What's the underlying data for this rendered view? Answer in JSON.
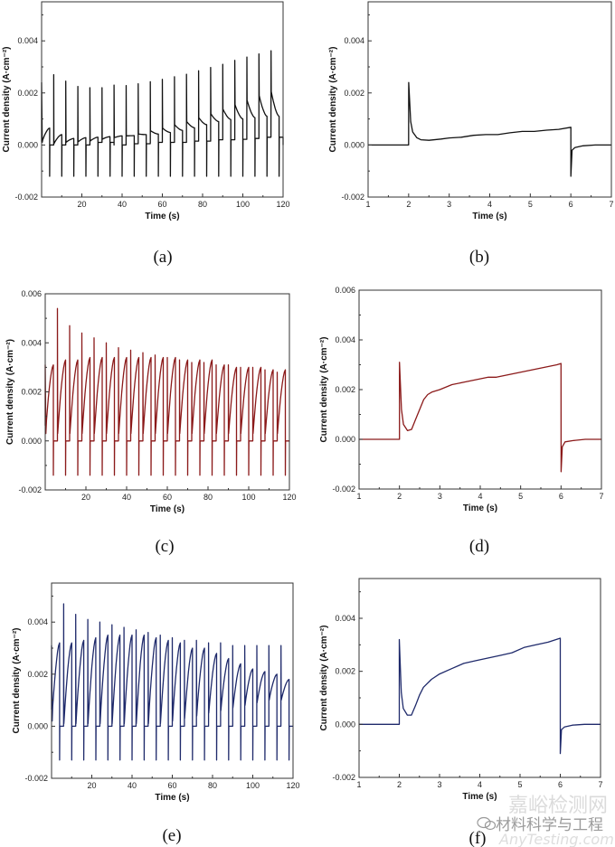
{
  "figure": {
    "watermark": {
      "site_name": "嘉峪检测网",
      "account_name": "材料科学与工程",
      "url_text": "AnyTesting.com",
      "icon": "wechat-icon"
    }
  },
  "chart_data": [
    {
      "id": "a",
      "panel_label": "(a)",
      "type": "line",
      "title": "",
      "xlabel": "Time (s)",
      "ylabel": "Current density (A·cm⁻²)",
      "xlim": [
        0,
        120
      ],
      "ylim": [
        -0.002,
        0.0055
      ],
      "xticks": [
        20,
        40,
        60,
        80,
        100,
        120
      ],
      "xtick_labels": [
        "20",
        "40",
        "60",
        "80",
        "100",
        "120"
      ],
      "yticks": [
        -0.002,
        0,
        0.002,
        0.004
      ],
      "ytick_labels": [
        "-0.002",
        "0.000",
        "0.002",
        "0.004"
      ],
      "color": "#111111",
      "grid": false,
      "waveform": "pulse_train",
      "period_s": 6,
      "on_s": 4,
      "cycles": 20,
      "on_spike": [
        0.0024,
        0.0027,
        0.00245,
        0.00225,
        0.0022,
        0.0022,
        0.0023,
        0.00228,
        0.00235,
        0.00243,
        0.00252,
        0.00262,
        0.00272,
        0.00285,
        0.00298,
        0.0031,
        0.00325,
        0.00338,
        0.0035,
        0.00362
      ],
      "on_start": [
        0.0001,
        5e-05,
        0.0001,
        0.00012,
        0.00015,
        0.00022,
        0.00028,
        0.00035,
        0.00042,
        0.00055,
        0.00065,
        0.00078,
        0.0009,
        0.00105,
        0.0012,
        0.00138,
        0.00155,
        0.00172,
        0.0019,
        0.00205
      ],
      "on_end": [
        0.00065,
        0.0004,
        0.00025,
        0.00028,
        0.0003,
        0.00032,
        0.00035,
        0.00036,
        0.0004,
        0.00042,
        0.00048,
        0.00056,
        0.00066,
        0.00078,
        0.0009,
        0.00098,
        0.001,
        0.00105,
        0.0011,
        0.0011
      ],
      "off_spike": -0.0012,
      "off_level": [
        0,
        0,
        0,
        0,
        0.0001,
        0.0001,
        0,
        5e-05,
        5e-05,
        0.0001,
        0.0001,
        0.0001,
        0.00015,
        0.00015,
        0.0002,
        0.0002,
        0.00022,
        0.00025,
        0.0003,
        0.0003
      ]
    },
    {
      "id": "b",
      "panel_label": "(b)",
      "type": "line",
      "title": "",
      "xlabel": "Time (s)",
      "ylabel": "Current density (A·cm⁻²)",
      "xlim": [
        1,
        7
      ],
      "ylim": [
        -0.002,
        0.0055
      ],
      "xticks": [
        1,
        2,
        3,
        4,
        5,
        6,
        7
      ],
      "xtick_labels": [
        "1",
        "2",
        "3",
        "4",
        "5",
        "6",
        "7"
      ],
      "yticks": [
        -0.002,
        0,
        0.002,
        0.004
      ],
      "ytick_labels": [
        "-0.002",
        "0.000",
        "0.002",
        "0.004"
      ],
      "color": "#111111",
      "grid": false,
      "x": [
        1,
        2,
        2.001,
        2.05,
        2.1,
        2.2,
        2.3,
        2.5,
        2.8,
        3.0,
        3.3,
        3.6,
        3.9,
        4.2,
        4.5,
        4.8,
        5.1,
        5.4,
        5.7,
        6.0,
        6.001,
        6.03,
        6.1,
        6.3,
        6.6,
        7
      ],
      "y": [
        0,
        0,
        0.0024,
        0.0009,
        0.0005,
        0.00028,
        0.0002,
        0.00018,
        0.00023,
        0.00027,
        0.0003,
        0.00037,
        0.0004,
        0.0004,
        0.00047,
        0.00052,
        0.00052,
        0.00057,
        0.0006,
        0.00068,
        -0.0012,
        -0.0002,
        -0.0001,
        -3e-05,
        0,
        0
      ]
    },
    {
      "id": "c",
      "panel_label": "(c)",
      "type": "line",
      "title": "",
      "xlabel": "Time (s)",
      "ylabel": "Current density (A·cm⁻²)",
      "xlim": [
        0,
        120
      ],
      "ylim": [
        -0.002,
        0.006
      ],
      "xticks": [
        20,
        40,
        60,
        80,
        100,
        120
      ],
      "xtick_labels": [
        "20",
        "40",
        "60",
        "80",
        "100",
        "120"
      ],
      "yticks": [
        -0.002,
        0,
        0.002,
        0.004,
        0.006
      ],
      "ytick_labels": [
        "-0.002",
        "0.000",
        "0.002",
        "0.004",
        "0.006"
      ],
      "color": "#8b1a1a",
      "grid": false,
      "waveform": "pulse_train",
      "period_s": 6,
      "on_s": 4,
      "cycles": 20,
      "on_spike": [
        0.0031,
        0.0054,
        0.0047,
        0.0044,
        0.0042,
        0.004,
        0.0038,
        0.0037,
        0.0036,
        0.0035,
        0.0034,
        0.0033,
        0.0032,
        0.0032,
        0.0031,
        0.0031,
        0.003,
        0.003,
        0.0029,
        0.0028
      ],
      "on_start": [
        0.0003,
        0.0003,
        0.0003,
        0.0003,
        0.0003,
        0.0003,
        0.0003,
        0.0003,
        0.0003,
        0.0003,
        0.0003,
        0.0003,
        0.0003,
        0.0003,
        0.0003,
        0.0003,
        0.0003,
        0.0003,
        0.0003,
        0.0003
      ],
      "on_end": [
        0.0031,
        0.0033,
        0.0033,
        0.0034,
        0.0034,
        0.0034,
        0.0034,
        0.0034,
        0.0034,
        0.0034,
        0.0034,
        0.0033,
        0.0033,
        0.0033,
        0.0031,
        0.003,
        0.003,
        0.003,
        0.0029,
        0.0029
      ],
      "off_spike": -0.0014,
      "off_level": [
        0,
        0,
        0,
        0,
        0,
        0,
        0,
        0,
        0,
        0,
        0,
        0,
        0,
        0,
        0,
        0,
        0,
        0,
        0,
        0
      ]
    },
    {
      "id": "d",
      "panel_label": "(d)",
      "type": "line",
      "title": "",
      "xlabel": "Time (s)",
      "ylabel": "Current density (A·cm⁻²)",
      "xlim": [
        1,
        7
      ],
      "ylim": [
        -0.002,
        0.006
      ],
      "xticks": [
        1,
        2,
        3,
        4,
        5,
        6,
        7
      ],
      "xtick_labels": [
        "1",
        "2",
        "3",
        "4",
        "5",
        "6",
        "7"
      ],
      "yticks": [
        -0.002,
        0,
        0.002,
        0.004,
        0.006
      ],
      "ytick_labels": [
        "-0.002",
        "0.000",
        "0.002",
        "0.004",
        "0.006"
      ],
      "color": "#8b1a1a",
      "grid": false,
      "x": [
        1,
        2,
        2.001,
        2.05,
        2.1,
        2.2,
        2.3,
        2.4,
        2.5,
        2.6,
        2.7,
        2.8,
        3.0,
        3.3,
        3.6,
        3.9,
        4.2,
        4.4,
        4.7,
        5.0,
        5.3,
        5.6,
        5.9,
        6.0,
        6.001,
        6.03,
        6.1,
        6.3,
        6.6,
        7
      ],
      "y": [
        0,
        0,
        0.0031,
        0.0012,
        0.0006,
        0.00035,
        0.0004,
        0.0008,
        0.0012,
        0.0016,
        0.0018,
        0.0019,
        0.002,
        0.0022,
        0.0023,
        0.0024,
        0.0025,
        0.0025,
        0.0026,
        0.0027,
        0.0028,
        0.0029,
        0.003,
        0.00305,
        -0.0013,
        -0.0003,
        -0.0001,
        -5e-05,
        0,
        0
      ]
    },
    {
      "id": "e",
      "panel_label": "(e)",
      "type": "line",
      "title": "",
      "xlabel": "Time (s)",
      "ylabel": "Current density (A·cm⁻²)",
      "xlim": [
        0,
        120
      ],
      "ylim": [
        -0.002,
        0.0055
      ],
      "xticks": [
        20,
        40,
        60,
        80,
        100,
        120
      ],
      "xtick_labels": [
        "20",
        "40",
        "60",
        "80",
        "100",
        "120"
      ],
      "yticks": [
        -0.002,
        0,
        0.002,
        0.004
      ],
      "ytick_labels": [
        "-0.002",
        "0.000",
        "0.002",
        "0.004"
      ],
      "color": "#1f2a6b",
      "grid": false,
      "waveform": "pulse_train",
      "period_s": 6,
      "on_s": 4,
      "cycles": 20,
      "on_spike": [
        0.0031,
        0.0047,
        0.0043,
        0.0041,
        0.004,
        0.0039,
        0.0038,
        0.0037,
        0.0036,
        0.0035,
        0.0034,
        0.0033,
        0.0033,
        0.0032,
        0.0032,
        0.0031,
        0.0031,
        0.0031,
        0.0031,
        0.0031
      ],
      "on_start": [
        0.0002,
        0.0001,
        0.0001,
        0.0001,
        0.0001,
        0.0001,
        0.0001,
        0.0001,
        0.0001,
        0.0001,
        0.0002,
        0.0003,
        0.0004,
        0.0005,
        0.0006,
        0.0007,
        0.0008,
        0.0009,
        0.001,
        0.001
      ],
      "on_end": [
        0.0032,
        0.0032,
        0.0033,
        0.0034,
        0.0035,
        0.0035,
        0.0035,
        0.0035,
        0.0034,
        0.0033,
        0.0032,
        0.003,
        0.003,
        0.0028,
        0.0026,
        0.0024,
        0.0022,
        0.0021,
        0.002,
        0.0018
      ],
      "off_spike": -0.0013,
      "off_level": [
        0,
        0,
        0,
        0,
        0,
        0,
        0,
        0,
        0,
        0,
        0,
        0,
        0,
        0,
        0,
        0,
        0,
        0,
        0,
        0
      ]
    },
    {
      "id": "f",
      "panel_label": "(f)",
      "type": "line",
      "title": "",
      "xlabel": "Time (s)",
      "ylabel": "Current density (A·cm⁻²)",
      "xlim": [
        1,
        7
      ],
      "ylim": [
        -0.002,
        0.0055
      ],
      "xticks": [
        1,
        2,
        3,
        4,
        5,
        6,
        7
      ],
      "xtick_labels": [
        "1",
        "2",
        "3",
        "4",
        "5",
        "6",
        "7"
      ],
      "yticks": [
        -0.002,
        0,
        0.002,
        0.004
      ],
      "ytick_labels": [
        "-0.002",
        "0.000",
        "0.002",
        "0.004"
      ],
      "color": "#1f2a6b",
      "grid": false,
      "x": [
        1,
        2,
        2.001,
        2.05,
        2.1,
        2.2,
        2.3,
        2.4,
        2.5,
        2.6,
        2.8,
        3.0,
        3.3,
        3.6,
        3.9,
        4.2,
        4.5,
        4.8,
        5.1,
        5.4,
        5.7,
        6.0,
        6.001,
        6.03,
        6.1,
        6.3,
        6.6,
        7
      ],
      "y": [
        0,
        0,
        0.0032,
        0.0012,
        0.0006,
        0.00035,
        0.00035,
        0.0007,
        0.0011,
        0.0014,
        0.0017,
        0.0019,
        0.0021,
        0.0023,
        0.0024,
        0.0025,
        0.0026,
        0.0027,
        0.0029,
        0.003,
        0.0031,
        0.00325,
        -0.0011,
        -0.0002,
        -0.0001,
        -3e-05,
        0,
        0
      ]
    }
  ]
}
